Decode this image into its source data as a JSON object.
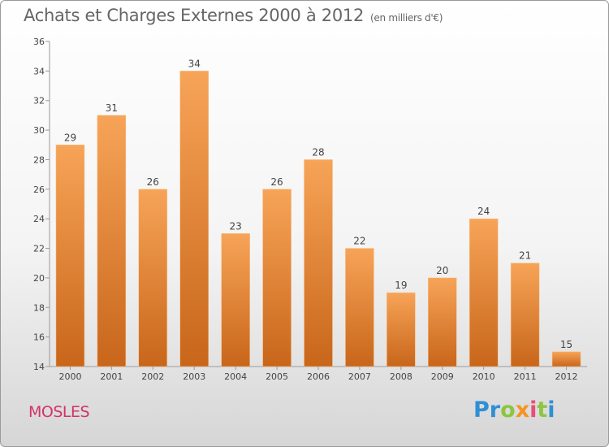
{
  "header": {
    "title": "Achats et Charges Externes 2000 à 2012",
    "unit": "(en milliers d'€)"
  },
  "footer": {
    "commune": "MOSLES",
    "logo_letters": [
      {
        "char": "P",
        "color": "#2f8fd6"
      },
      {
        "char": "r",
        "color": "#2f8fd6"
      },
      {
        "char": "o",
        "color": "#8cc63f"
      },
      {
        "char": "x",
        "color": "#f7931e"
      },
      {
        "char": "i",
        "color": "#e94e77"
      },
      {
        "char": "t",
        "color": "#8cc63f"
      },
      {
        "char": "i",
        "color": "#2f8fd6"
      }
    ]
  },
  "chart_data": {
    "type": "bar",
    "title": "Achats et Charges Externes 2000 à 2012",
    "subtitle": "(en milliers d'€)",
    "xlabel": "",
    "ylabel": "",
    "categories": [
      "2000",
      "2001",
      "2002",
      "2003",
      "2004",
      "2005",
      "2006",
      "2007",
      "2008",
      "2009",
      "2010",
      "2011",
      "2012"
    ],
    "values": [
      29,
      31,
      26,
      34,
      23,
      26,
      28,
      22,
      19,
      20,
      24,
      21,
      15
    ],
    "ylim": [
      14,
      36
    ],
    "yticks": [
      14,
      16,
      18,
      20,
      22,
      24,
      26,
      28,
      30,
      32,
      34,
      36
    ],
    "grid": false,
    "legend": "none",
    "colors": {
      "bar_top": "#f7a458",
      "bar_bottom": "#c8661a",
      "axis": "#999999"
    }
  }
}
